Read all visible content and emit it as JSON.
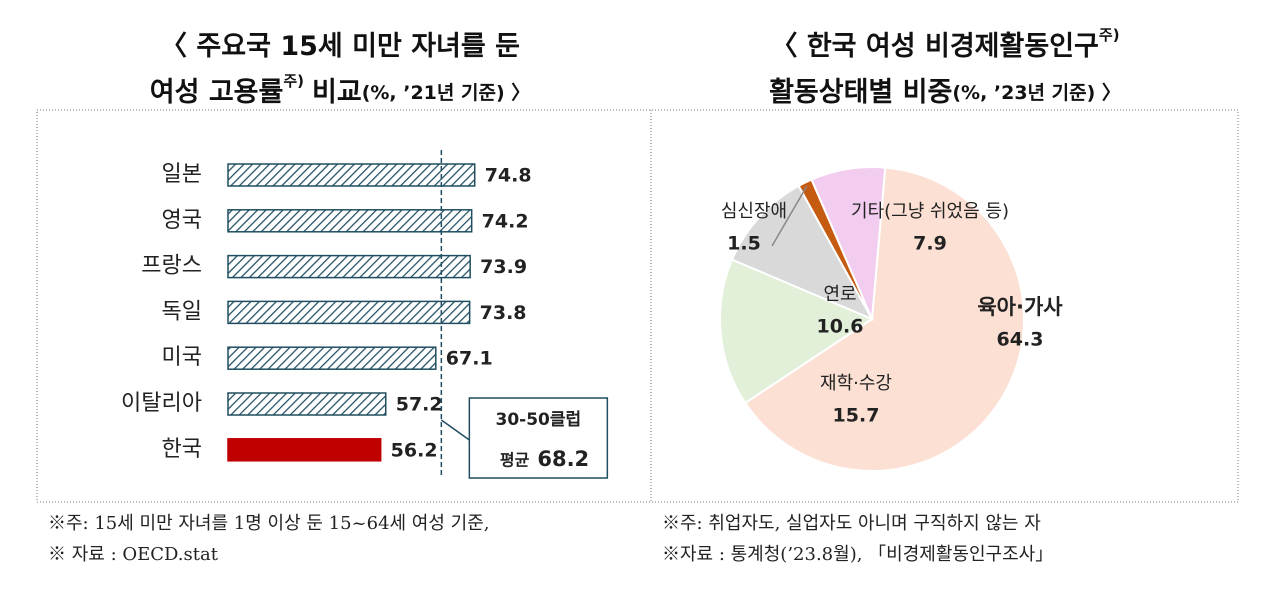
{
  "chart_data": [
    {
      "type": "bar",
      "orientation": "horizontal",
      "title": "〈 주요국 15세 미만 자녀를 둔",
      "subtitle": "여성 고용률",
      "title_note": "주)",
      "subtitle_tail": "비교",
      "unit_note": "(%, ’21년 기준) 〉",
      "categories": [
        "일본",
        "영국",
        "프랑스",
        "독일",
        "미국",
        "이탈리아",
        "한국"
      ],
      "values": [
        74.8,
        74.2,
        73.9,
        73.8,
        67.1,
        57.2,
        56.2
      ],
      "colors": [
        "#1f4e61",
        "#1f4e61",
        "#1f4e61",
        "#1f4e61",
        "#1f4e61",
        "#1f4e61",
        "#c00000"
      ],
      "hatched": [
        true,
        true,
        true,
        true,
        true,
        true,
        false
      ],
      "xlim": [
        26,
        80
      ],
      "average": 68.2,
      "average_label": "30-50클럽",
      "average_prefix": "평균"
    },
    {
      "type": "pie",
      "title": "〈 한국 여성 비경제활동인구",
      "title_note": "주)",
      "subtitle": "활동상태별 비중",
      "unit_note": "(%, ’23년 기준) 〉",
      "categories": [
        "육아·가사",
        "재학·수강",
        "연로",
        "심신장애",
        "기타(그냥 쉬었음 등)"
      ],
      "values": [
        64.3,
        15.7,
        10.6,
        1.5,
        7.9
      ],
      "colors": [
        "#fbe0d3",
        "#e2f0d9",
        "#d9d9d9",
        "#c55a11",
        "#f2cdf0"
      ],
      "label_colors": [
        "#c00000",
        "#222222",
        "#222222",
        "#222222",
        "#222222"
      ]
    }
  ],
  "notes": [
    [
      "※주: 15세 미만 자녀를 1명 이상 둔 15~64세 여성 기준,",
      "※ 자료 : OECD.stat"
    ],
    [
      "※주: 취업자도, 실업자도 아니며 구직하지 않는 자",
      "※자료 : 통계청(’23.8월), 「비경제활동인구조사」"
    ]
  ]
}
